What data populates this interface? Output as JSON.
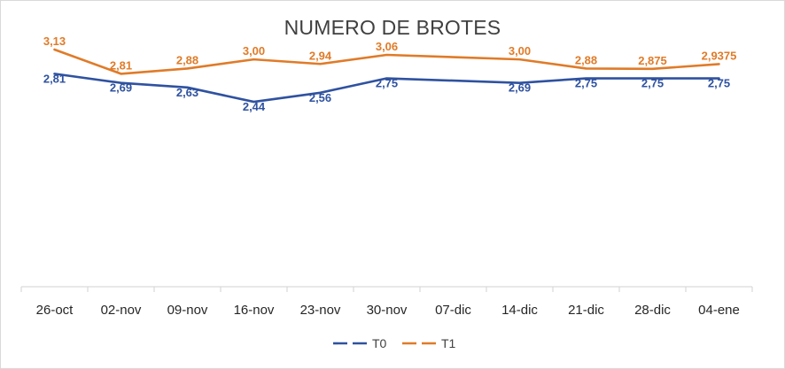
{
  "chart_data": {
    "type": "line",
    "title": "NUMERO DE BROTES",
    "xlabel": "",
    "ylabel": "",
    "categories": [
      "26-oct",
      "02-nov",
      "09-nov",
      "16-nov",
      "23-nov",
      "30-nov",
      "07-dic",
      "14-dic",
      "21-dic",
      "28-dic",
      "04-ene"
    ],
    "x_positions": [
      0,
      1,
      2,
      3,
      4,
      5,
      6,
      7,
      8,
      9,
      10
    ],
    "ylim": [
      0,
      3.2
    ],
    "grid": false,
    "legend_position": "bottom",
    "series": [
      {
        "name": "T0",
        "color": "#2f52a0",
        "x": [
          0,
          1,
          2,
          3,
          4,
          5,
          7,
          8,
          9,
          10
        ],
        "values": [
          2.81,
          2.69,
          2.63,
          2.44,
          2.56,
          2.75,
          2.69,
          2.75,
          2.75,
          2.75
        ],
        "labels": [
          "2,81",
          "2,69",
          "2,63",
          "2,44",
          "2,56",
          "2,75",
          "2,69",
          "2,75",
          "2,75",
          "2,75"
        ]
      },
      {
        "name": "T1",
        "color": "#e07b28",
        "x": [
          0,
          1,
          2,
          3,
          4,
          5,
          7,
          8,
          9,
          10
        ],
        "values": [
          3.13,
          2.81,
          2.88,
          3.0,
          2.94,
          3.06,
          3.0,
          2.88,
          2.875,
          2.9375
        ],
        "labels": [
          "3,13",
          "2,81",
          "2,88",
          "3,00",
          "2,94",
          "3,06",
          "3,00",
          "2,88",
          "2,875",
          "2,9375"
        ]
      }
    ]
  }
}
